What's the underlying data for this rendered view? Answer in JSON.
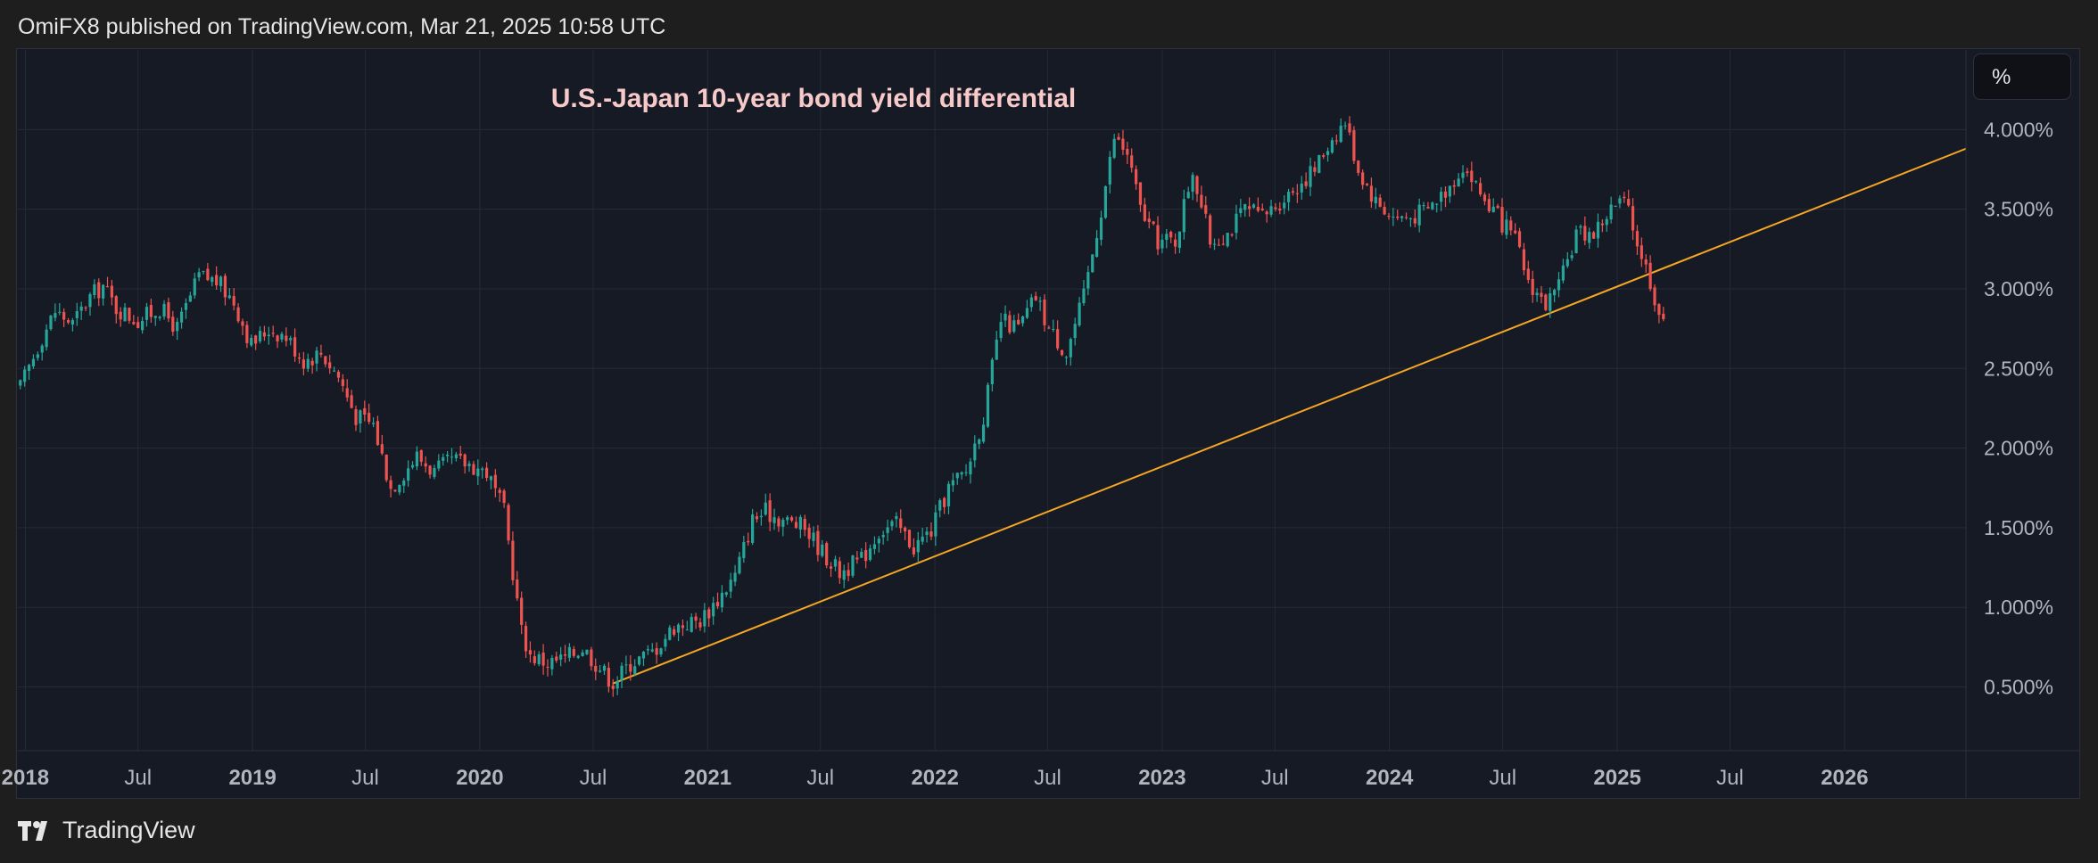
{
  "header": {
    "publisher_line": "OmiFX8 published on TradingView.com, Mar 21, 2025 10:58 UTC"
  },
  "scale_button": {
    "label": "%"
  },
  "footer": {
    "brand": "TradingView",
    "logo_icon": "tradingview-logo-icon"
  },
  "colors": {
    "background": "#161a25",
    "grid": "#262a35",
    "up": "#26a69a",
    "down": "#ef5350",
    "trendline": "#f5a623",
    "title": "#f8c9c9",
    "axis_text": "#b2b5be"
  },
  "chart_data": {
    "type": "candlestick",
    "title": "U.S.-Japan 10-year bond yield differential",
    "y_unit": "%",
    "ylim": [
      0.1,
      4.5
    ],
    "xlim": [
      "2017-12-20",
      "2026-07-15"
    ],
    "y_ticks": [
      "4.000%",
      "3.500%",
      "3.000%",
      "2.500%",
      "2.000%",
      "1.500%",
      "1.000%",
      "0.500%"
    ],
    "y_tick_values": [
      4.0,
      3.5,
      3.0,
      2.5,
      2.0,
      1.5,
      1.0,
      0.5
    ],
    "x_ticks": [
      {
        "label": "2018",
        "date": "2018-01-01",
        "bold": true
      },
      {
        "label": "Jul",
        "date": "2018-07-01",
        "bold": false
      },
      {
        "label": "2019",
        "date": "2019-01-01",
        "bold": true
      },
      {
        "label": "Jul",
        "date": "2019-07-01",
        "bold": false
      },
      {
        "label": "2020",
        "date": "2020-01-01",
        "bold": true
      },
      {
        "label": "Jul",
        "date": "2020-07-01",
        "bold": false
      },
      {
        "label": "2021",
        "date": "2021-01-01",
        "bold": true
      },
      {
        "label": "Jul",
        "date": "2021-07-01",
        "bold": false
      },
      {
        "label": "2022",
        "date": "2022-01-01",
        "bold": true
      },
      {
        "label": "Jul",
        "date": "2022-07-01",
        "bold": false
      },
      {
        "label": "2023",
        "date": "2023-01-01",
        "bold": true
      },
      {
        "label": "Jul",
        "date": "2023-07-01",
        "bold": false
      },
      {
        "label": "2024",
        "date": "2024-01-01",
        "bold": true
      },
      {
        "label": "Jul",
        "date": "2024-07-01",
        "bold": false
      },
      {
        "label": "2025",
        "date": "2025-01-01",
        "bold": true
      },
      {
        "label": "Jul",
        "date": "2025-07-01",
        "bold": false
      },
      {
        "label": "2026",
        "date": "2026-01-01",
        "bold": true
      }
    ],
    "trendline": {
      "start": [
        "2020-08-01",
        0.52
      ],
      "end": [
        "2026-07-15",
        3.88
      ]
    },
    "series_close": [
      [
        "2017-12-24",
        2.38
      ],
      [
        "2018-01-28",
        2.7
      ],
      [
        "2018-02-18",
        2.86
      ],
      [
        "2018-03-18",
        2.78
      ],
      [
        "2018-04-15",
        2.95
      ],
      [
        "2018-05-06",
        3.02
      ],
      [
        "2018-05-27",
        2.88
      ],
      [
        "2018-07-01",
        2.8
      ],
      [
        "2018-08-05",
        2.88
      ],
      [
        "2018-09-02",
        2.75
      ],
      [
        "2018-10-07",
        3.08
      ],
      [
        "2018-11-04",
        3.05
      ],
      [
        "2018-12-02",
        2.92
      ],
      [
        "2018-12-30",
        2.65
      ],
      [
        "2019-01-27",
        2.75
      ],
      [
        "2019-02-24",
        2.7
      ],
      [
        "2019-03-24",
        2.55
      ],
      [
        "2019-04-21",
        2.6
      ],
      [
        "2019-05-19",
        2.45
      ],
      [
        "2019-06-16",
        2.2
      ],
      [
        "2019-07-14",
        2.15
      ],
      [
        "2019-08-11",
        1.75
      ],
      [
        "2019-09-01",
        1.85
      ],
      [
        "2019-09-22",
        1.95
      ],
      [
        "2019-10-20",
        1.85
      ],
      [
        "2019-11-17",
        1.92
      ],
      [
        "2019-12-15",
        1.9
      ],
      [
        "2020-01-12",
        1.85
      ],
      [
        "2020-02-09",
        1.6
      ],
      [
        "2020-03-08",
        0.85
      ],
      [
        "2020-03-22",
        0.7
      ],
      [
        "2020-04-19",
        0.65
      ],
      [
        "2020-05-17",
        0.68
      ],
      [
        "2020-06-14",
        0.75
      ],
      [
        "2020-07-12",
        0.62
      ],
      [
        "2020-08-02",
        0.53
      ],
      [
        "2020-08-30",
        0.65
      ],
      [
        "2020-10-04",
        0.72
      ],
      [
        "2020-11-08",
        0.88
      ],
      [
        "2020-12-20",
        0.92
      ],
      [
        "2021-01-17",
        1.05
      ],
      [
        "2021-02-14",
        1.2
      ],
      [
        "2021-03-14",
        1.55
      ],
      [
        "2021-04-04",
        1.6
      ],
      [
        "2021-05-02",
        1.55
      ],
      [
        "2021-06-06",
        1.5
      ],
      [
        "2021-07-04",
        1.35
      ],
      [
        "2021-08-01",
        1.22
      ],
      [
        "2021-09-05",
        1.3
      ],
      [
        "2021-10-03",
        1.48
      ],
      [
        "2021-10-31",
        1.52
      ],
      [
        "2021-11-28",
        1.38
      ],
      [
        "2021-12-26",
        1.48
      ],
      [
        "2022-01-23",
        1.75
      ],
      [
        "2022-02-20",
        1.85
      ],
      [
        "2022-03-20",
        2.2
      ],
      [
        "2022-04-17",
        2.8
      ],
      [
        "2022-05-15",
        2.75
      ],
      [
        "2022-06-12",
        2.95
      ],
      [
        "2022-07-03",
        2.75
      ],
      [
        "2022-07-31",
        2.6
      ],
      [
        "2022-08-28",
        2.95
      ],
      [
        "2022-09-25",
        3.5
      ],
      [
        "2022-10-16",
        3.95
      ],
      [
        "2022-11-06",
        3.85
      ],
      [
        "2022-11-27",
        3.5
      ],
      [
        "2022-12-25",
        3.3
      ],
      [
        "2023-01-22",
        3.3
      ],
      [
        "2023-02-19",
        3.75
      ],
      [
        "2023-03-19",
        3.3
      ],
      [
        "2023-04-16",
        3.35
      ],
      [
        "2023-05-14",
        3.5
      ],
      [
        "2023-06-11",
        3.45
      ],
      [
        "2023-07-09",
        3.55
      ],
      [
        "2023-08-06",
        3.65
      ],
      [
        "2023-09-03",
        3.75
      ],
      [
        "2023-10-01",
        3.95
      ],
      [
        "2023-10-22",
        4.05
      ],
      [
        "2023-11-12",
        3.75
      ],
      [
        "2023-12-10",
        3.55
      ],
      [
        "2024-01-07",
        3.45
      ],
      [
        "2024-02-04",
        3.45
      ],
      [
        "2024-03-03",
        3.5
      ],
      [
        "2024-04-07",
        3.65
      ],
      [
        "2024-04-28",
        3.78
      ],
      [
        "2024-05-26",
        3.6
      ],
      [
        "2024-06-23",
        3.45
      ],
      [
        "2024-07-21",
        3.3
      ],
      [
        "2024-08-11",
        3.05
      ],
      [
        "2024-09-08",
        2.9
      ],
      [
        "2024-09-29",
        3.0
      ],
      [
        "2024-10-27",
        3.35
      ],
      [
        "2024-11-24",
        3.35
      ],
      [
        "2024-12-22",
        3.5
      ],
      [
        "2025-01-12",
        3.55
      ],
      [
        "2025-02-02",
        3.3
      ],
      [
        "2025-02-23",
        3.05
      ],
      [
        "2025-03-09",
        2.85
      ],
      [
        "2025-03-21",
        2.7
      ]
    ]
  }
}
